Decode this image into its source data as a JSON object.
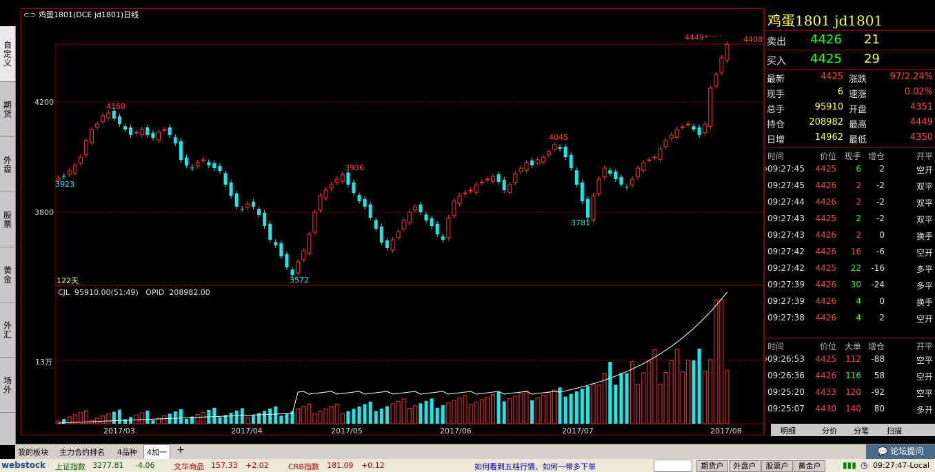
{
  "window": {
    "title": "鸡蛋1801(DCE jd1801)日线"
  },
  "left_nav": {
    "items": [
      "自定义",
      "期货",
      "外盘",
      "股票",
      "黄金",
      "外汇",
      "场外"
    ]
  },
  "chart": {
    "y_labels": [
      "4200",
      "3800"
    ],
    "vol_y_label": "13万",
    "x_labels": [
      "2017/03",
      "2017/04",
      "2017/05",
      "2017/06",
      "2017/07",
      "2017/08"
    ],
    "annotations": {
      "high_4160": "4160",
      "low_3923": "3923",
      "high_3936": "3936",
      "low_3572": "3572",
      "high_4045": "4045",
      "low_3781": "3781",
      "high_4449": "4449",
      "last_4408": "4408",
      "days": "122天"
    },
    "volume_header": "CJL  95910.00(51:49)   OPID  208982.00"
  },
  "quote": {
    "name": "鸡蛋1801  jd1801",
    "sell_label": "卖出",
    "sell_price": "4426",
    "sell_vol": "21",
    "buy_label": "买入",
    "buy_price": "4425",
    "buy_vol": "29",
    "stats": [
      {
        "l1": "最新",
        "v1": "4425",
        "c1": "red",
        "l2": "涨跌",
        "v2": "97/2.24%",
        "c2": "red"
      },
      {
        "l1": "现手",
        "v1": "6",
        "c1": "yel",
        "l2": "速涨",
        "v2": "0.02%",
        "c2": "red"
      },
      {
        "l1": "总手",
        "v1": "95910",
        "c1": "yel",
        "l2": "开盘",
        "v2": "4351",
        "c2": "red"
      },
      {
        "l1": "持仓",
        "v1": "208982",
        "c1": "yel",
        "l2": "最高",
        "v2": "4449",
        "c2": "red"
      },
      {
        "l1": "日增",
        "v1": "14962",
        "c1": "yel",
        "l2": "最低",
        "v2": "4350",
        "c2": "red"
      }
    ],
    "ticks_header": [
      "时间",
      "价位",
      "现手",
      "增仓",
      "开平"
    ],
    "ticks": [
      {
        "t": "09:27:45",
        "p": "4425",
        "v": "6",
        "vc": "grn",
        "d": "2",
        "k": "空开"
      },
      {
        "t": "09:27:45",
        "p": "4426",
        "v": "2",
        "vc": "red",
        "d": "-2",
        "k": "双平"
      },
      {
        "t": "09:27:44",
        "p": "4426",
        "v": "2",
        "vc": "red",
        "d": "-2",
        "k": "双平"
      },
      {
        "t": "09:27:43",
        "p": "4425",
        "v": "2",
        "vc": "grn",
        "d": "-2",
        "k": "双平"
      },
      {
        "t": "09:27:43",
        "p": "4426",
        "v": "2",
        "vc": "red",
        "d": "0",
        "k": "换手"
      },
      {
        "t": "09:27:42",
        "p": "4426",
        "v": "16",
        "vc": "red",
        "d": "-6",
        "k": "空开"
      },
      {
        "t": "09:27:42",
        "p": "4425",
        "v": "22",
        "vc": "grn",
        "d": "-16",
        "k": "多平"
      },
      {
        "t": "09:27:39",
        "p": "4426",
        "v": "30",
        "vc": "grn",
        "d": "-24",
        "k": "多平"
      },
      {
        "t": "09:27:39",
        "p": "4426",
        "v": "4",
        "vc": "grn",
        "d": "0",
        "k": "换手"
      },
      {
        "t": "09:27:38",
        "p": "4426",
        "v": "4",
        "vc": "grn",
        "d": "2",
        "k": "空开"
      }
    ],
    "big_header": [
      "时间",
      "价位",
      "大单",
      "增仓",
      "开平"
    ],
    "big": [
      {
        "t": "09:26:53",
        "p": "4425",
        "v": "112",
        "vc": "red",
        "d": "-88",
        "k": "空平"
      },
      {
        "t": "09:26:36",
        "p": "4426",
        "v": "116",
        "vc": "grn",
        "d": "58",
        "k": "空开"
      },
      {
        "t": "09:25:20",
        "p": "4433",
        "v": "120",
        "vc": "red",
        "d": "-92",
        "k": "空平"
      },
      {
        "t": "09:25:07",
        "p": "4430",
        "v": "140",
        "vc": "red",
        "d": "80",
        "k": "多开"
      }
    ],
    "tabs": [
      "明细",
      "分价",
      "分笔",
      "扫描"
    ]
  },
  "bottom_tabs": [
    "我的板块",
    "主力合约排名",
    "4品种",
    "4加一",
    "+"
  ],
  "forum_button": "论坛提问",
  "status": {
    "brand": "webstock",
    "idx1_name": "上证指数",
    "idx1_val": "3277.81",
    "idx1_chg": "-4.06",
    "idx2_name": "文华商品",
    "idx2_val": "157.33",
    "idx2_chg": "+2.02",
    "idx3_name": "CRB指数",
    "idx3_val": "181.09",
    "idx3_chg": "+0.12",
    "ticker": "如何看到五档行情、如何一带多下单",
    "btns": [
      "期货户",
      "外盘户",
      "股票户",
      "黄金户"
    ],
    "clock": "09:27:47-Local"
  },
  "colors": {
    "up": "#ff3030",
    "down": "#18e8e8",
    "frame": "#8b0000"
  }
}
